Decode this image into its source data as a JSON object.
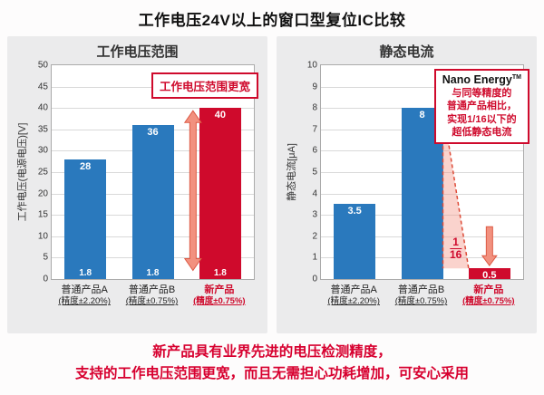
{
  "title": "工作电压24V以上的窗口型复位IC比较",
  "footer": {
    "line1": "新产品具有业界先进的电压检测精度，",
    "line2": "支持的工作电压范围更宽，而且无需担心功耗增加，可安心采用"
  },
  "colors": {
    "blue": "#2a79bd",
    "red": "#cf0a2c",
    "salmon": "#f2917f",
    "arrow_stroke": "#dd5a45",
    "dash": "#dd4b38",
    "shade": "rgba(243,150,135,0.42)",
    "panel_bg": "#ebebec",
    "footer_red": "#d7002f",
    "grid": "#d9d9d9"
  },
  "chart_data": [
    {
      "type": "bar",
      "title": "工作电压范围",
      "ylabel": "工作电压(电源电压)[V]",
      "ylim": [
        0,
        50
      ],
      "ytick_step": 5,
      "grid": true,
      "categories": [
        "普通产品A",
        "普通产品B",
        "新产品"
      ],
      "category_sub": [
        "(精度±2.20%)",
        "(精度±0.75%)",
        "(精度±0.75%)"
      ],
      "values": [
        28,
        36,
        40
      ],
      "value_labels": [
        "28",
        "36",
        "40"
      ],
      "base_value": 1.8,
      "base_labels": [
        "1.8",
        "1.8",
        "1.8"
      ],
      "bar_colors": [
        "blue",
        "blue",
        "red"
      ],
      "annotation": "工作电压范围更宽",
      "overlay": {
        "type": "range_arrow",
        "from": 1.8,
        "to": 40,
        "bar_index": 2
      }
    },
    {
      "type": "bar",
      "title": "静态电流",
      "ylabel": "静态电流[μA]",
      "ylim": [
        0,
        10
      ],
      "ytick_step": 1,
      "grid": true,
      "categories": [
        "普通产品A",
        "普通产品B",
        "新产品"
      ],
      "category_sub": [
        "(精度±2.20%)",
        "(精度±0.75%)",
        "(精度±0.75%)"
      ],
      "values": [
        3.5,
        8,
        0.5
      ],
      "value_labels": [
        "3.5",
        "8",
        "0.5"
      ],
      "bar_colors": [
        "blue",
        "blue",
        "red"
      ],
      "annotation": {
        "title": "Nano Energy",
        "tm": "TM",
        "lines": [
          "与同等精度的",
          "普通产品相比，",
          "实现1/16以下的",
          "超低静态电流"
        ]
      },
      "ratio_label": "1/16",
      "overlay": {
        "type": "ratio_drop",
        "from_bar": 1,
        "to_bar": 2
      }
    }
  ]
}
